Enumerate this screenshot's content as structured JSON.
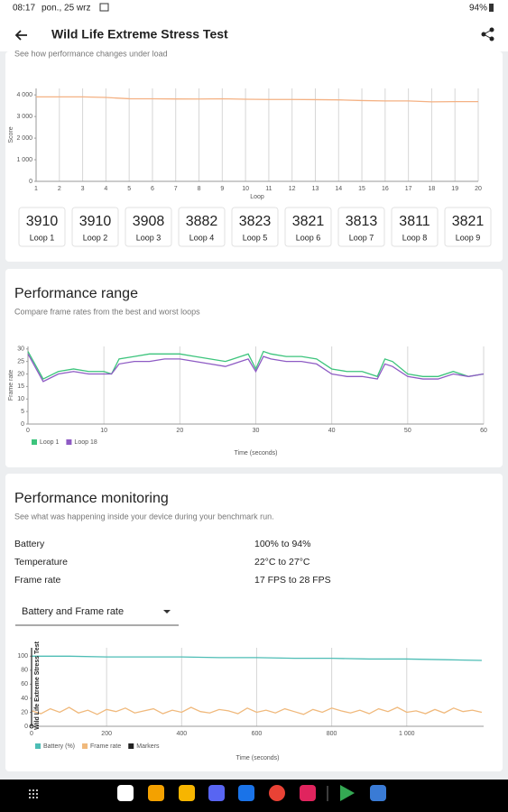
{
  "status_bar": {
    "time": "08:17",
    "date": "pon., 25 wrz",
    "battery": "94%"
  },
  "app_bar": {
    "title": "Wild Life Extreme Stress Test"
  },
  "stability": {
    "subtitle": "See how performance changes under load",
    "chart": {
      "type": "line",
      "y_label": "Score",
      "x_label": "Loop",
      "x": [
        1,
        2,
        3,
        4,
        5,
        6,
        7,
        8,
        9,
        10,
        11,
        12,
        13,
        14,
        15,
        16,
        17,
        18,
        19,
        20
      ],
      "values": [
        3910,
        3910,
        3908,
        3882,
        3823,
        3821,
        3813,
        3811,
        3821,
        3800,
        3790,
        3790,
        3780,
        3770,
        3740,
        3720,
        3720,
        3680,
        3690,
        3690
      ],
      "color": "#f4b183",
      "xlim": [
        1,
        20
      ],
      "xticks": [
        1,
        2,
        3,
        4,
        5,
        6,
        7,
        8,
        9,
        10,
        11,
        12,
        13,
        14,
        15,
        16,
        17,
        18,
        19,
        20
      ],
      "ylim": [
        0,
        4300
      ],
      "yticks": [
        0,
        {
          "value": 1000,
          "label": "1 000"
        },
        {
          "value": 2000,
          "label": "2 000"
        },
        {
          "value": 3000,
          "label": "3 000"
        },
        {
          "value": 4000,
          "label": "4 000"
        }
      ],
      "grid": true
    },
    "loop_labels": [
      "Loop 1",
      "Loop 2",
      "Loop 3",
      "Loop 4",
      "Loop 5",
      "Loop 6",
      "Loop 7",
      "Loop 8",
      "Loop 9"
    ]
  },
  "range": {
    "title": "Performance range",
    "subtitle": "Compare frame rates from the best and worst loops",
    "chart": {
      "type": "line",
      "y_label": "Frame rate",
      "x_label": "Time (seconds)",
      "x": [
        0,
        2,
        4,
        6,
        8,
        10,
        11,
        12,
        14,
        16,
        18,
        20,
        22,
        24,
        26,
        28,
        29,
        30,
        31,
        32,
        34,
        36,
        38,
        40,
        42,
        44,
        46,
        47,
        48,
        50,
        52,
        54,
        56,
        58,
        60
      ],
      "series": [
        {
          "name": "Loop 1",
          "color": "#3cc47c",
          "values": [
            29,
            18,
            21,
            22,
            21,
            21,
            20,
            26,
            27,
            28,
            28,
            28,
            27,
            26,
            25,
            27,
            28,
            22,
            29,
            28,
            27,
            27,
            26,
            22,
            21,
            21,
            19,
            26,
            25,
            20,
            19,
            19,
            21,
            19,
            20
          ]
        },
        {
          "name": "Loop 18",
          "color": "#8e5bc4",
          "values": [
            28,
            17,
            20,
            21,
            20,
            20,
            20,
            24,
            25,
            25,
            26,
            26,
            25,
            24,
            23,
            25,
            26,
            21,
            27,
            26,
            25,
            25,
            24,
            20,
            19,
            19,
            18,
            24,
            23,
            19,
            18,
            18,
            20,
            19,
            20
          ]
        }
      ],
      "xlim": [
        0,
        60
      ],
      "xticks": [
        0,
        10,
        20,
        30,
        40,
        50,
        60
      ],
      "ylim": [
        0,
        31
      ],
      "yticks": [
        0,
        5,
        10,
        15,
        20,
        25,
        30
      ],
      "grid": true
    }
  },
  "monitoring": {
    "title": "Performance monitoring",
    "subtitle": "See what was happening inside your device during your benchmark run.",
    "rows": [
      [
        "Battery",
        "100% to 94%"
      ],
      [
        "Temperature",
        "22°C to 27°C"
      ],
      [
        "Frame rate",
        "17 FPS to 28 FPS"
      ]
    ],
    "dropdown": "Battery and Frame rate",
    "chart": {
      "type": "line",
      "x_label": "Time (seconds)",
      "marker_label": "Wild Life Extreme Stress Test",
      "series": [
        {
          "name": "Battery (%)",
          "color": "#4dbdb5",
          "x": [
            0,
            100,
            200,
            300,
            400,
            500,
            600,
            700,
            800,
            900,
            1000,
            1100,
            1200
          ],
          "values": [
            100,
            100,
            99,
            99,
            99,
            98,
            98,
            97,
            97,
            96,
            96,
            95,
            94
          ]
        },
        {
          "name": "Frame rate",
          "color": "#f0b97c",
          "x": [
            0,
            25,
            50,
            75,
            100,
            125,
            150,
            175,
            200,
            225,
            250,
            275,
            300,
            325,
            350,
            375,
            400,
            425,
            450,
            475,
            500,
            525,
            550,
            575,
            600,
            625,
            650,
            675,
            700,
            725,
            750,
            775,
            800,
            825,
            850,
            875,
            900,
            925,
            950,
            975,
            1000,
            1025,
            1050,
            1075,
            1100,
            1125,
            1150,
            1175,
            1200
          ],
          "values": [
            22,
            18,
            25,
            20,
            27,
            19,
            23,
            17,
            24,
            21,
            26,
            19,
            22,
            25,
            18,
            23,
            20,
            27,
            21,
            19,
            24,
            22,
            18,
            26,
            20,
            23,
            19,
            25,
            21,
            17,
            24,
            20,
            26,
            22,
            19,
            23,
            18,
            25,
            21,
            27,
            20,
            22,
            18,
            24,
            19,
            26,
            21,
            23,
            20
          ]
        }
      ],
      "markers": {
        "name": "Markers",
        "color": "#222222",
        "x": [
          0
        ]
      },
      "xlim": [
        0,
        1205
      ],
      "xticks": [
        0,
        200,
        400,
        600,
        800,
        {
          "value": 1000,
          "label": "1 000"
        }
      ],
      "ylim": [
        0,
        112
      ],
      "yticks": [
        0,
        20,
        40,
        60,
        80,
        100
      ],
      "grid": true
    }
  }
}
